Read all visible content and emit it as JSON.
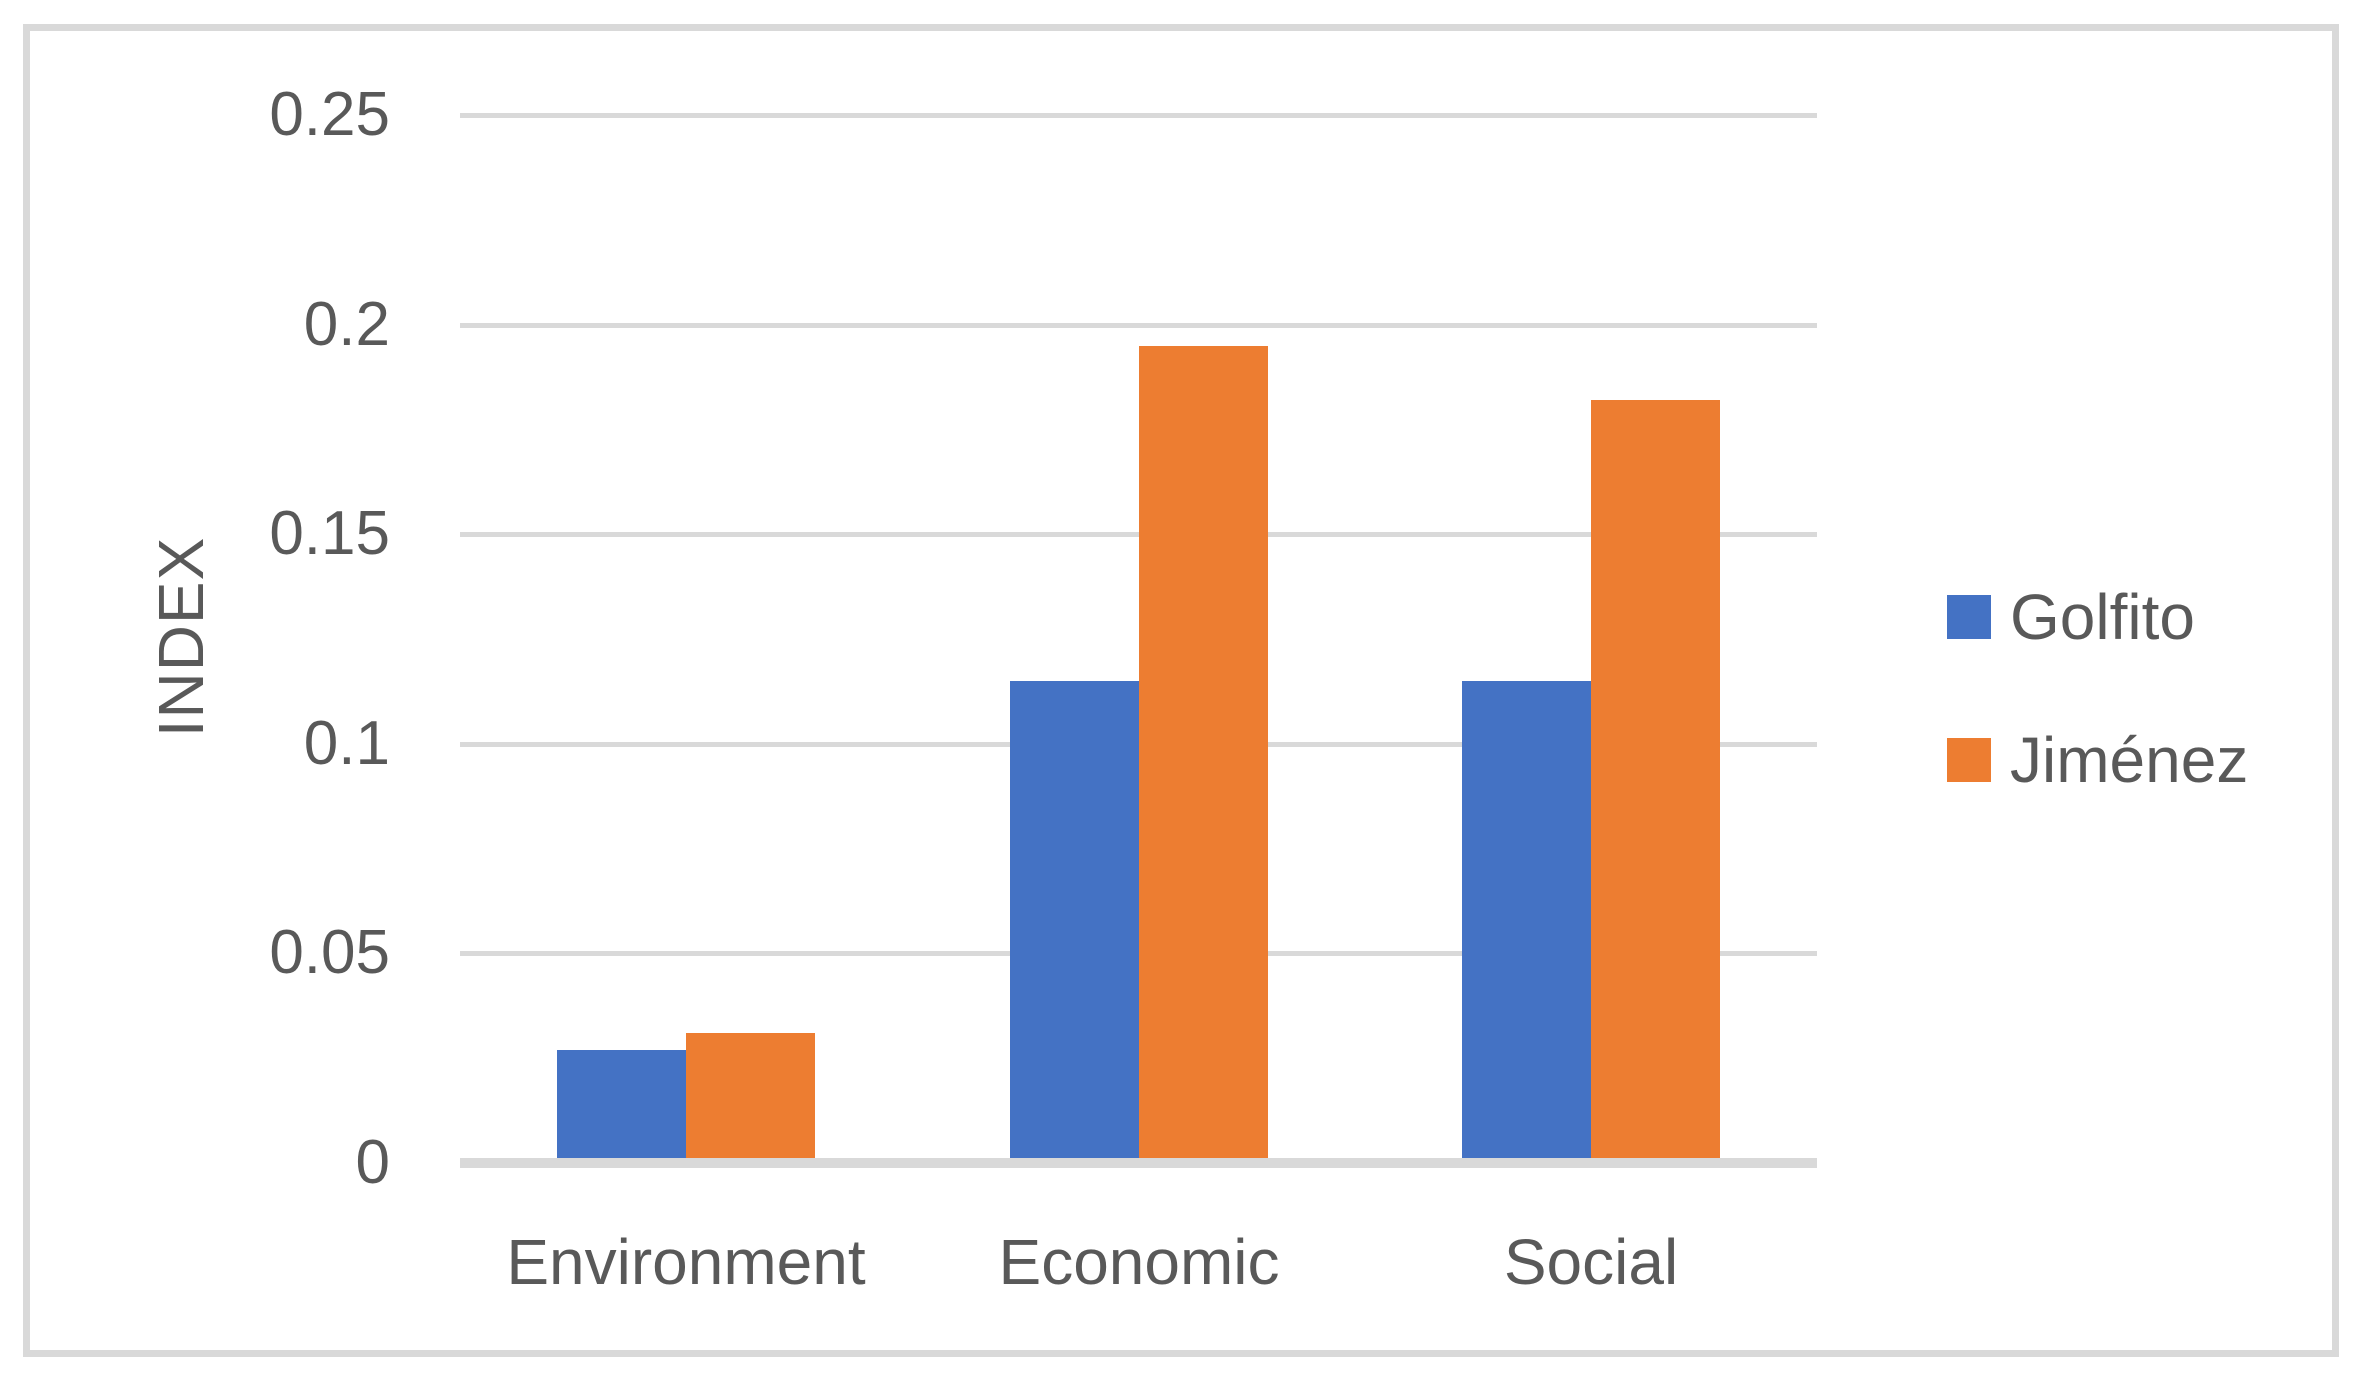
{
  "chart_data": {
    "type": "bar",
    "title": "",
    "categories": [
      "Environment",
      "Economic",
      "Social"
    ],
    "series": [
      {
        "name": "Golfito",
        "color": "#4472C4",
        "values": [
          0.027,
          0.115,
          0.115
        ]
      },
      {
        "name": "Jiménez",
        "color": "#ED7D31",
        "values": [
          0.031,
          0.195,
          0.182
        ]
      }
    ],
    "xlabel": "",
    "ylabel": "INDEX",
    "ylim": [
      0,
      0.25
    ],
    "yticks": [
      0,
      0.05,
      0.1,
      0.15,
      0.2,
      0.25
    ],
    "ytick_labels": [
      "0",
      "0.05",
      "0.1",
      "0.15",
      "0.2",
      "0.25"
    ],
    "grid": true,
    "legend_position": "right"
  },
  "colors": {
    "bar_blue": "#4472C4",
    "bar_orange": "#ED7D31",
    "text": "#595959",
    "gridline": "#D9D9D9",
    "frame_border": "#D9D9D9",
    "background": "#FFFFFF"
  }
}
